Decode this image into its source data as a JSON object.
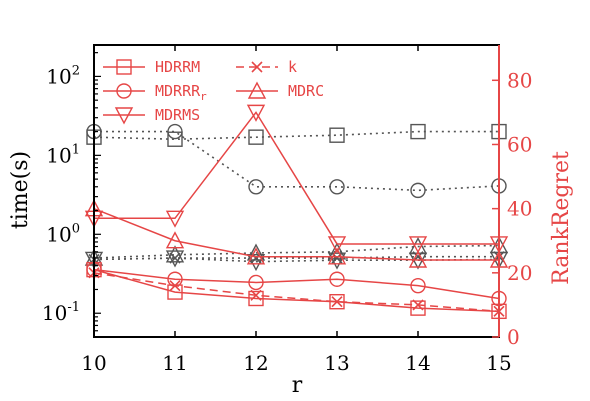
{
  "chart_data": {
    "type": "line",
    "x": [
      10,
      11,
      12,
      13,
      14,
      15
    ],
    "xlabel": "r",
    "ylabel_left": "time(s)",
    "ylabel_right": "RankRegret",
    "x_ticks": [
      "10",
      "11",
      "12",
      "13",
      "14",
      "15"
    ],
    "y_left_scale": "log",
    "y_left_lim": [
      0.05,
      250
    ],
    "y_left_ticks": [
      {
        "value": 0.1,
        "base": "10",
        "exp": "-1"
      },
      {
        "value": 1,
        "base": "10",
        "exp": "0"
      },
      {
        "value": 10,
        "base": "10",
        "exp": "1"
      },
      {
        "value": 100,
        "base": "10",
        "exp": "2"
      }
    ],
    "y_right_lim": [
      0,
      91
    ],
    "y_right_ticks": [
      "0",
      "20",
      "40",
      "60",
      "80"
    ],
    "colors": {
      "time": "#555555",
      "regret": "#e64646"
    },
    "legend": [
      "HDRRM",
      "k",
      "MDRRRr",
      "MDRC",
      "MDRMS"
    ],
    "time_series": [
      {
        "marker": "square",
        "values": [
          17,
          16,
          17,
          18,
          20,
          20
        ]
      },
      {
        "marker": "circle",
        "values": [
          20,
          20,
          4,
          4,
          3.6,
          4.1
        ]
      },
      {
        "marker": "triangle-up",
        "values": [
          0.5,
          0.55,
          0.58,
          0.6,
          0.7,
          0.72
        ]
      },
      {
        "marker": "triangle-down",
        "values": [
          0.48,
          0.5,
          0.45,
          0.47,
          0.47,
          0.48
        ]
      },
      {
        "marker": "x",
        "values": [
          0.48,
          0.5,
          0.5,
          0.5,
          0.52,
          0.52
        ]
      }
    ],
    "regret_series": [
      {
        "name": "HDRRM",
        "marker": "square",
        "values": [
          21,
          14,
          12,
          11,
          9,
          8
        ]
      },
      {
        "name": "k",
        "marker": "x",
        "values": [
          20,
          16,
          13,
          11,
          10,
          8
        ]
      },
      {
        "name": "MDRRRr",
        "marker": "circle",
        "values": [
          21,
          18,
          17,
          18,
          16,
          12
        ]
      },
      {
        "name": "MDRC",
        "marker": "triangle-up",
        "values": [
          40,
          30,
          25,
          25,
          24,
          24
        ]
      },
      {
        "name": "MDRMS",
        "marker": "triangle-down",
        "values": [
          37,
          37,
          70,
          29,
          29,
          29
        ]
      }
    ]
  }
}
